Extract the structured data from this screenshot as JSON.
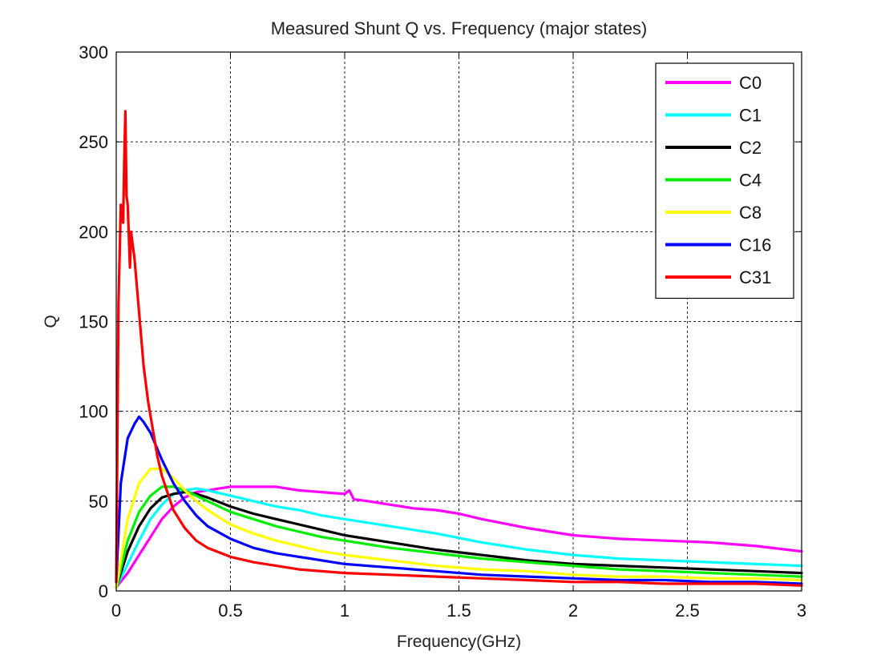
{
  "chart_data": {
    "type": "line",
    "title": "Measured Shunt Q vs. Frequency (major states)",
    "xlabel": "Frequency(GHz)",
    "ylabel": "Q",
    "xlim": [
      0,
      3
    ],
    "ylim": [
      0,
      300
    ],
    "grid": true,
    "legend_position": "top-right",
    "xticks": [
      0,
      0.5,
      1,
      1.5,
      2,
      2.5,
      3
    ],
    "xtick_labels": [
      "0",
      "0.5",
      "1",
      "1.5",
      "2",
      "2.5",
      "3"
    ],
    "yticks": [
      0,
      50,
      100,
      150,
      200,
      250,
      300
    ],
    "ytick_labels": [
      "0",
      "50",
      "100",
      "150",
      "200",
      "250",
      "300"
    ],
    "series": [
      {
        "name": "C0",
        "color": "#ff00ff",
        "x": [
          0,
          0.05,
          0.1,
          0.15,
          0.2,
          0.25,
          0.3,
          0.35,
          0.4,
          0.45,
          0.5,
          0.6,
          0.7,
          0.8,
          0.9,
          1.0,
          1.02,
          1.04,
          1.1,
          1.2,
          1.3,
          1.4,
          1.5,
          1.6,
          1.8,
          2.0,
          2.2,
          2.4,
          2.6,
          2.8,
          3.0
        ],
        "y": [
          2,
          10,
          20,
          30,
          40,
          47,
          52,
          55,
          56,
          57,
          58,
          58,
          58,
          56,
          55,
          54,
          56,
          51,
          50,
          48,
          46,
          45,
          43,
          40,
          35,
          31,
          29,
          28,
          27,
          25,
          22
        ]
      },
      {
        "name": "C1",
        "color": "#00ffff",
        "x": [
          0,
          0.05,
          0.1,
          0.15,
          0.2,
          0.25,
          0.3,
          0.35,
          0.4,
          0.5,
          0.6,
          0.7,
          0.8,
          0.9,
          1.0,
          1.2,
          1.4,
          1.6,
          1.8,
          2.0,
          2.2,
          2.4,
          2.6,
          2.8,
          3.0
        ],
        "y": [
          2,
          15,
          28,
          40,
          48,
          54,
          56,
          57,
          56,
          53,
          50,
          47,
          45,
          42,
          40,
          36,
          32,
          27,
          23,
          20,
          18,
          17,
          16,
          15,
          14
        ]
      },
      {
        "name": "C2",
        "color": "#000000",
        "x": [
          0,
          0.05,
          0.1,
          0.15,
          0.2,
          0.25,
          0.3,
          0.35,
          0.4,
          0.5,
          0.6,
          0.7,
          0.8,
          0.9,
          1.0,
          1.2,
          1.4,
          1.6,
          1.8,
          2.0,
          2.2,
          2.4,
          2.6,
          2.8,
          3.0
        ],
        "y": [
          2,
          22,
          36,
          46,
          52,
          54,
          55,
          54,
          52,
          47,
          43,
          40,
          37,
          34,
          31,
          27,
          23,
          20,
          17,
          15,
          14,
          13,
          12,
          11,
          10
        ]
      },
      {
        "name": "C4",
        "color": "#00ee00",
        "x": [
          0,
          0.05,
          0.1,
          0.15,
          0.2,
          0.25,
          0.3,
          0.35,
          0.4,
          0.5,
          0.6,
          0.7,
          0.8,
          0.9,
          1.0,
          1.2,
          1.4,
          1.6,
          1.8,
          2.0,
          2.2,
          2.4,
          2.6,
          2.8,
          3.0
        ],
        "y": [
          2,
          28,
          44,
          53,
          58,
          58,
          56,
          53,
          50,
          44,
          40,
          36,
          33,
          30,
          28,
          24,
          21,
          18,
          16,
          14,
          12,
          11,
          10,
          9,
          8
        ]
      },
      {
        "name": "C8",
        "color": "#ffff00",
        "x": [
          0,
          0.05,
          0.1,
          0.15,
          0.2,
          0.25,
          0.3,
          0.35,
          0.4,
          0.5,
          0.6,
          0.7,
          0.8,
          0.9,
          1.0,
          1.2,
          1.4,
          1.6,
          1.8,
          2.0,
          2.2,
          2.4,
          2.6,
          2.8,
          3.0
        ],
        "y": [
          2,
          40,
          60,
          68,
          68,
          63,
          56,
          50,
          45,
          37,
          32,
          28,
          25,
          22,
          20,
          17,
          14,
          12,
          11,
          9,
          8,
          8,
          7,
          7,
          6
        ]
      },
      {
        "name": "C16",
        "color": "#0000ff",
        "x": [
          0,
          0.02,
          0.05,
          0.08,
          0.1,
          0.12,
          0.15,
          0.2,
          0.25,
          0.3,
          0.35,
          0.4,
          0.5,
          0.6,
          0.7,
          0.8,
          1.0,
          1.2,
          1.4,
          1.6,
          1.8,
          2.0,
          2.2,
          2.4,
          2.6,
          2.8,
          3.0
        ],
        "y": [
          5,
          60,
          85,
          93,
          97,
          94,
          88,
          73,
          60,
          50,
          42,
          36,
          29,
          24,
          21,
          19,
          15,
          13,
          11,
          9,
          8,
          7,
          6,
          6,
          5,
          5,
          4
        ]
      },
      {
        "name": "C31",
        "color": "#ff0000",
        "x": [
          0,
          0.01,
          0.02,
          0.03,
          0.035,
          0.04,
          0.045,
          0.05,
          0.06,
          0.065,
          0.07,
          0.08,
          0.1,
          0.12,
          0.14,
          0.16,
          0.18,
          0.2,
          0.25,
          0.3,
          0.35,
          0.4,
          0.5,
          0.6,
          0.7,
          0.8,
          1.0,
          1.2,
          1.4,
          1.6,
          1.8,
          2.0,
          2.2,
          2.4,
          2.6,
          2.8,
          3.0
        ],
        "y": [
          5,
          160,
          215,
          205,
          240,
          267,
          220,
          215,
          180,
          200,
          195,
          185,
          155,
          125,
          105,
          90,
          75,
          64,
          45,
          35,
          28,
          24,
          19,
          16,
          14,
          12,
          10,
          9,
          8,
          7,
          6,
          5,
          5,
          4,
          4,
          4,
          3
        ]
      }
    ]
  }
}
